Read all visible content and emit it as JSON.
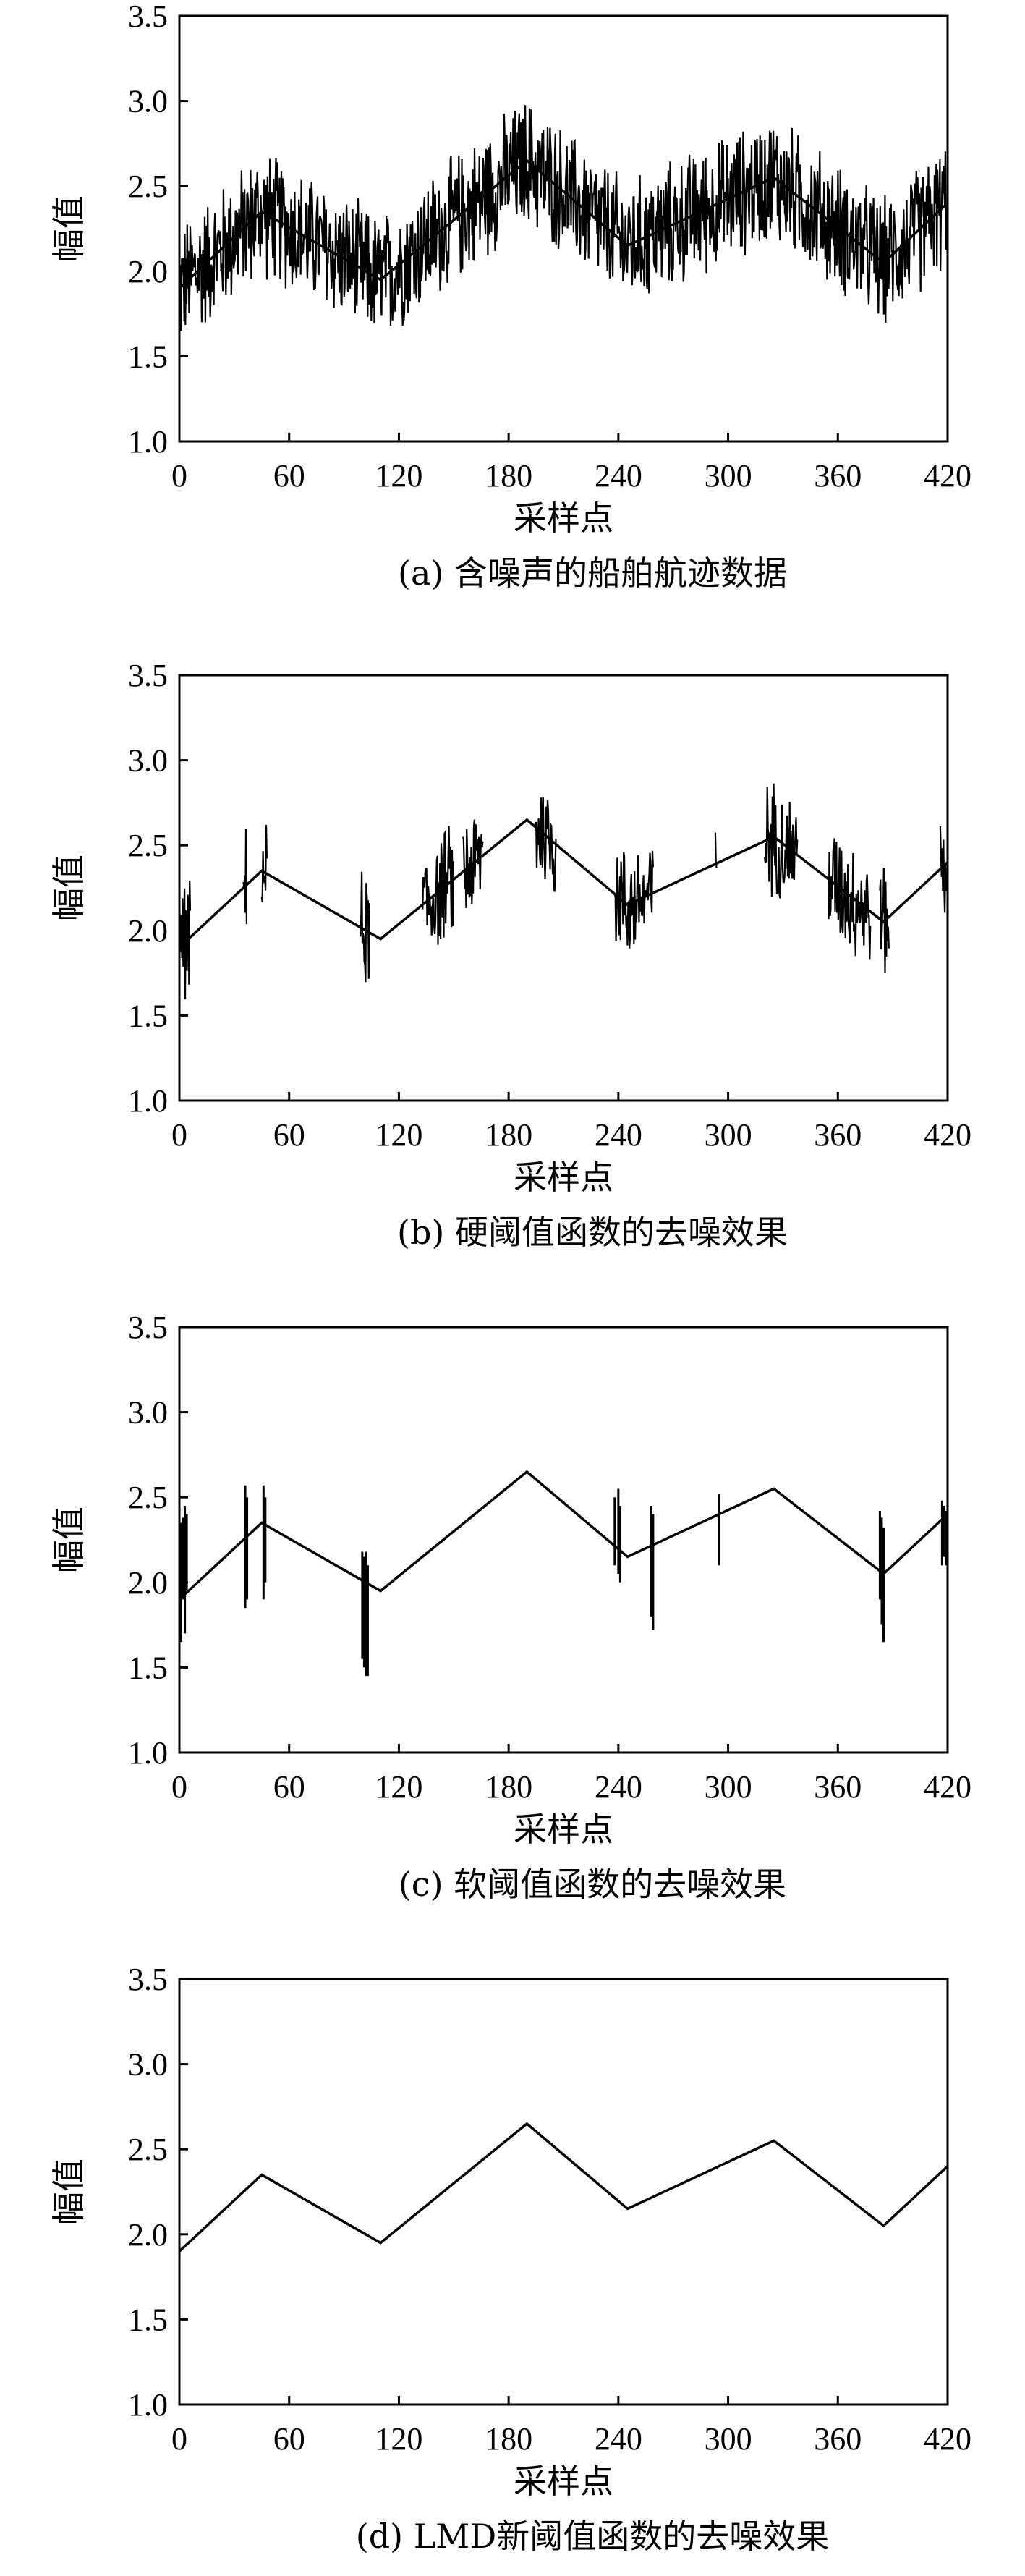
{
  "chart_data": [
    {
      "type": "line",
      "caption": "(a) 含噪声的船舶航迹数据",
      "xlabel": "采样点",
      "ylabel": "幅值",
      "xlim": [
        0,
        420
      ],
      "ylim": [
        1.0,
        3.5
      ],
      "xticks": [
        0,
        60,
        120,
        180,
        240,
        300,
        360,
        420
      ],
      "yticks": [
        "1.0",
        "1.5",
        "2.0",
        "2.5",
        "3.0",
        "3.5"
      ],
      "base": [
        [
          0,
          1.9
        ],
        [
          45,
          2.35
        ],
        [
          110,
          1.95
        ],
        [
          190,
          2.65
        ],
        [
          245,
          2.15
        ],
        [
          325,
          2.55
        ],
        [
          385,
          2.05
        ],
        [
          420,
          2.4
        ]
      ],
      "noise": "dense",
      "noise_amplitude": 0.42,
      "spikes": []
    },
    {
      "type": "line",
      "caption": "(b) 硬阈值函数的去噪效果",
      "xlabel": "采样点",
      "ylabel": "幅值",
      "xlim": [
        0,
        420
      ],
      "ylim": [
        1.0,
        3.5
      ],
      "xticks": [
        0,
        60,
        120,
        180,
        240,
        300,
        360,
        420
      ],
      "yticks": [
        "1.0",
        "1.5",
        "2.0",
        "2.5",
        "3.0",
        "3.5"
      ],
      "base": [
        [
          0,
          1.9
        ],
        [
          45,
          2.35
        ],
        [
          110,
          1.95
        ],
        [
          190,
          2.65
        ],
        [
          245,
          2.15
        ],
        [
          325,
          2.55
        ],
        [
          385,
          2.05
        ],
        [
          420,
          2.4
        ]
      ],
      "noise": "clusters",
      "clusters": [
        [
          0,
          6
        ],
        [
          35,
          37
        ],
        [
          45,
          48
        ],
        [
          99,
          104
        ],
        [
          133,
          150
        ],
        [
          155,
          166
        ],
        [
          195,
          206
        ],
        [
          238,
          259
        ],
        [
          293,
          294
        ],
        [
          320,
          338
        ],
        [
          355,
          378
        ],
        [
          383,
          388
        ],
        [
          416,
          420
        ]
      ],
      "noise_amplitude": 0.38,
      "spikes": []
    },
    {
      "type": "line",
      "caption": "(c) 软阈值函数的去噪效果",
      "xlabel": "采样点",
      "ylabel": "幅值",
      "xlim": [
        0,
        420
      ],
      "ylim": [
        1.0,
        3.5
      ],
      "xticks": [
        0,
        60,
        120,
        180,
        240,
        300,
        360,
        420
      ],
      "yticks": [
        "1.0",
        "1.5",
        "2.0",
        "2.5",
        "3.0",
        "3.5"
      ],
      "base": [
        [
          0,
          1.9
        ],
        [
          45,
          2.35
        ],
        [
          110,
          1.95
        ],
        [
          190,
          2.65
        ],
        [
          245,
          2.15
        ],
        [
          325,
          2.55
        ],
        [
          385,
          2.05
        ],
        [
          420,
          2.4
        ]
      ],
      "noise": "spikes",
      "spikes": [
        [
          0,
          1.8,
          2.4
        ],
        [
          1,
          1.65,
          2.35
        ],
        [
          2,
          1.9,
          2.38
        ],
        [
          3,
          1.7,
          2.45
        ],
        [
          4,
          1.95,
          2.4
        ],
        [
          36,
          1.85,
          2.57
        ],
        [
          37,
          1.9,
          2.5
        ],
        [
          46,
          1.9,
          2.57
        ],
        [
          47,
          2.0,
          2.5
        ],
        [
          100,
          1.55,
          2.18
        ],
        [
          101,
          1.5,
          2.15
        ],
        [
          102,
          1.45,
          2.18
        ],
        [
          103,
          1.45,
          2.1
        ],
        [
          238,
          2.1,
          2.5
        ],
        [
          240,
          2.05,
          2.55
        ],
        [
          241,
          2.0,
          2.45
        ],
        [
          258,
          1.8,
          2.45
        ],
        [
          259,
          1.72,
          2.4
        ],
        [
          295,
          2.1,
          2.52
        ],
        [
          383,
          1.9,
          2.42
        ],
        [
          384,
          1.75,
          2.38
        ],
        [
          385,
          1.65,
          2.32
        ],
        [
          417,
          2.1,
          2.48
        ],
        [
          418,
          2.15,
          2.45
        ],
        [
          419,
          2.1,
          2.42
        ]
      ]
    },
    {
      "type": "line",
      "caption": "(d) LMD新阈值函数的去噪效果",
      "xlabel": "采样点",
      "ylabel": "幅值",
      "xlim": [
        0,
        420
      ],
      "ylim": [
        1.0,
        3.5
      ],
      "xticks": [
        0,
        60,
        120,
        180,
        240,
        300,
        360,
        420
      ],
      "yticks": [
        "1.0",
        "1.5",
        "2.0",
        "2.5",
        "3.0",
        "3.5"
      ],
      "base": [
        [
          0,
          1.9
        ],
        [
          45,
          2.35
        ],
        [
          110,
          1.95
        ],
        [
          190,
          2.65
        ],
        [
          245,
          2.15
        ],
        [
          325,
          2.55
        ],
        [
          385,
          2.05
        ],
        [
          420,
          2.4
        ]
      ],
      "noise": "none",
      "spikes": []
    }
  ]
}
